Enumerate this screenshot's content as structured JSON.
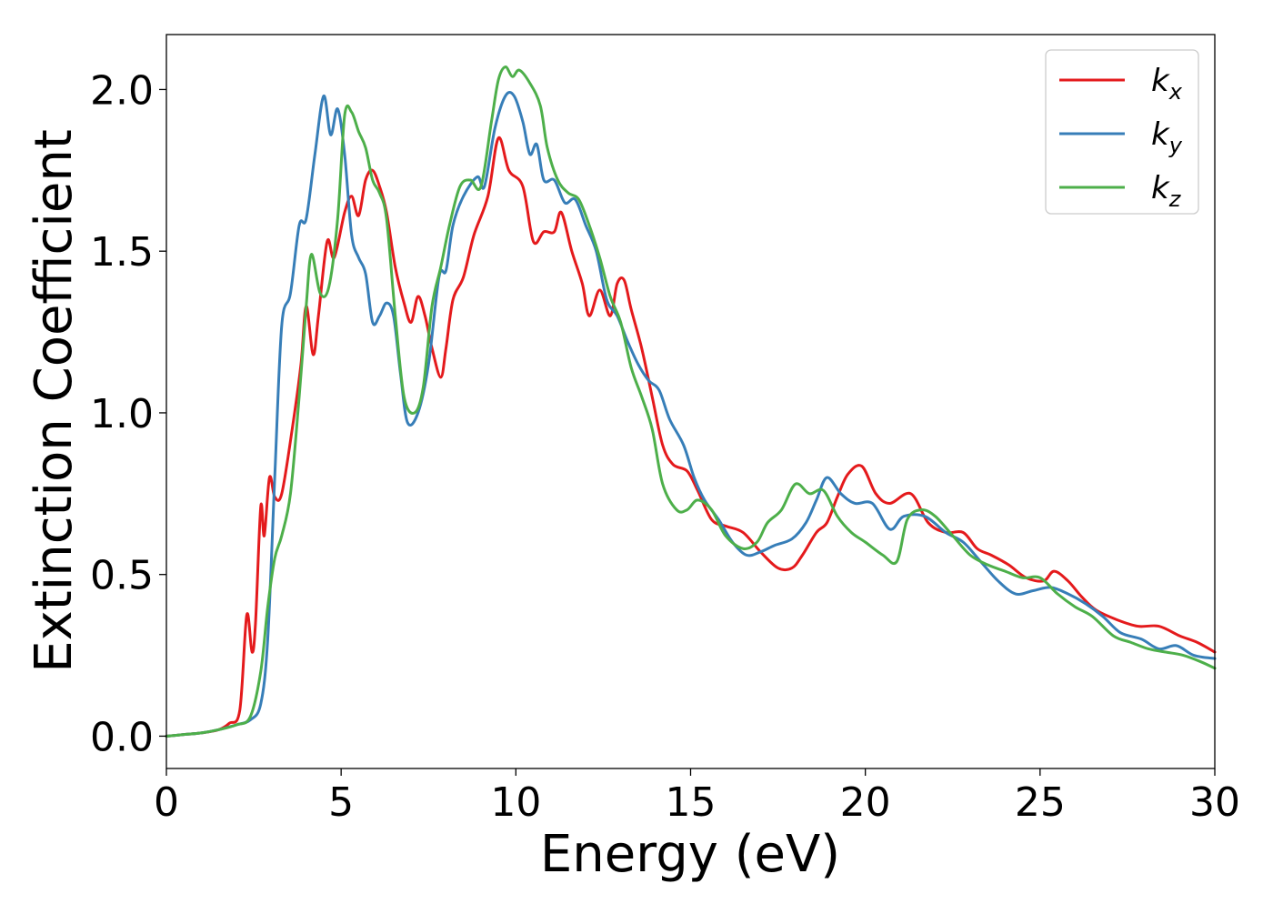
{
  "chart_data": {
    "type": "line",
    "title": "",
    "xlabel": "Energy (eV)",
    "ylabel": "Extinction Coefficient",
    "xlim": [
      0,
      30
    ],
    "ylim": [
      -0.1,
      2.17
    ],
    "xticks": [
      0,
      5,
      10,
      15,
      20,
      25,
      30
    ],
    "xtick_labels": [
      "0",
      "5",
      "10",
      "15",
      "20",
      "25",
      "30"
    ],
    "yticks": [
      0.0,
      0.5,
      1.0,
      1.5,
      2.0
    ],
    "ytick_labels": [
      "0.0",
      "0.5",
      "1.0",
      "1.5",
      "2.0"
    ],
    "grid": false,
    "legend_position": "top-right",
    "series": [
      {
        "name": "k",
        "subscript": "x",
        "color": "#e41a1c",
        "points": [
          [
            0,
            0
          ],
          [
            0.5,
            0.005
          ],
          [
            1,
            0.01
          ],
          [
            1.5,
            0.02
          ],
          [
            1.8,
            0.04
          ],
          [
            2.1,
            0.08
          ],
          [
            2.3,
            0.375
          ],
          [
            2.45,
            0.26
          ],
          [
            2.55,
            0.35
          ],
          [
            2.7,
            0.71
          ],
          [
            2.8,
            0.62
          ],
          [
            2.95,
            0.8
          ],
          [
            3.1,
            0.74
          ],
          [
            3.3,
            0.75
          ],
          [
            3.6,
            0.95
          ],
          [
            3.85,
            1.15
          ],
          [
            4.0,
            1.33
          ],
          [
            4.2,
            1.18
          ],
          [
            4.35,
            1.3
          ],
          [
            4.6,
            1.53
          ],
          [
            4.8,
            1.48
          ],
          [
            5.1,
            1.62
          ],
          [
            5.3,
            1.67
          ],
          [
            5.5,
            1.61
          ],
          [
            5.7,
            1.72
          ],
          [
            5.9,
            1.75
          ],
          [
            6.1,
            1.7
          ],
          [
            6.3,
            1.62
          ],
          [
            6.55,
            1.45
          ],
          [
            6.8,
            1.34
          ],
          [
            7.0,
            1.28
          ],
          [
            7.2,
            1.36
          ],
          [
            7.4,
            1.3
          ],
          [
            7.6,
            1.2
          ],
          [
            7.85,
            1.11
          ],
          [
            8.0,
            1.2
          ],
          [
            8.2,
            1.35
          ],
          [
            8.5,
            1.42
          ],
          [
            8.8,
            1.55
          ],
          [
            9.2,
            1.67
          ],
          [
            9.5,
            1.85
          ],
          [
            9.8,
            1.75
          ],
          [
            10.2,
            1.7
          ],
          [
            10.5,
            1.53
          ],
          [
            10.8,
            1.56
          ],
          [
            11.1,
            1.56
          ],
          [
            11.3,
            1.62
          ],
          [
            11.6,
            1.5
          ],
          [
            11.9,
            1.4
          ],
          [
            12.1,
            1.3
          ],
          [
            12.4,
            1.38
          ],
          [
            12.7,
            1.3
          ],
          [
            12.9,
            1.4
          ],
          [
            13.1,
            1.41
          ],
          [
            13.3,
            1.32
          ],
          [
            13.6,
            1.2
          ],
          [
            13.9,
            1.05
          ],
          [
            14.2,
            0.9
          ],
          [
            14.5,
            0.84
          ],
          [
            14.9,
            0.82
          ],
          [
            15.2,
            0.76
          ],
          [
            15.6,
            0.67
          ],
          [
            16.0,
            0.65
          ],
          [
            16.5,
            0.63
          ],
          [
            17.0,
            0.57
          ],
          [
            17.5,
            0.52
          ],
          [
            17.9,
            0.52
          ],
          [
            18.2,
            0.56
          ],
          [
            18.6,
            0.63
          ],
          [
            18.9,
            0.66
          ],
          [
            19.2,
            0.74
          ],
          [
            19.5,
            0.81
          ],
          [
            19.9,
            0.835
          ],
          [
            20.3,
            0.75
          ],
          [
            20.7,
            0.72
          ],
          [
            21.3,
            0.75
          ],
          [
            21.8,
            0.66
          ],
          [
            22.3,
            0.63
          ],
          [
            22.8,
            0.63
          ],
          [
            23.2,
            0.58
          ],
          [
            23.6,
            0.56
          ],
          [
            24.1,
            0.53
          ],
          [
            24.6,
            0.49
          ],
          [
            25.1,
            0.48
          ],
          [
            25.4,
            0.51
          ],
          [
            25.8,
            0.48
          ],
          [
            26.2,
            0.43
          ],
          [
            26.6,
            0.39
          ],
          [
            27.2,
            0.36
          ],
          [
            27.8,
            0.34
          ],
          [
            28.4,
            0.34
          ],
          [
            29.0,
            0.31
          ],
          [
            29.5,
            0.29
          ],
          [
            30,
            0.26
          ]
        ]
      },
      {
        "name": "k",
        "subscript": "y",
        "color": "#377eb8",
        "points": [
          [
            0,
            0
          ],
          [
            0.5,
            0.005
          ],
          [
            1,
            0.01
          ],
          [
            1.5,
            0.02
          ],
          [
            2.0,
            0.035
          ],
          [
            2.4,
            0.05
          ],
          [
            2.7,
            0.1
          ],
          [
            2.9,
            0.3
          ],
          [
            3.1,
            0.8
          ],
          [
            3.3,
            1.27
          ],
          [
            3.55,
            1.37
          ],
          [
            3.8,
            1.58
          ],
          [
            4.0,
            1.6
          ],
          [
            4.25,
            1.8
          ],
          [
            4.5,
            1.98
          ],
          [
            4.7,
            1.86
          ],
          [
            4.9,
            1.94
          ],
          [
            5.1,
            1.8
          ],
          [
            5.3,
            1.55
          ],
          [
            5.5,
            1.48
          ],
          [
            5.7,
            1.43
          ],
          [
            5.9,
            1.28
          ],
          [
            6.1,
            1.3
          ],
          [
            6.3,
            1.34
          ],
          [
            6.5,
            1.3
          ],
          [
            6.7,
            1.12
          ],
          [
            6.9,
            0.97
          ],
          [
            7.2,
            1.0
          ],
          [
            7.5,
            1.15
          ],
          [
            7.8,
            1.42
          ],
          [
            8.0,
            1.44
          ],
          [
            8.2,
            1.58
          ],
          [
            8.5,
            1.67
          ],
          [
            8.9,
            1.73
          ],
          [
            9.1,
            1.7
          ],
          [
            9.4,
            1.88
          ],
          [
            9.7,
            1.98
          ],
          [
            9.95,
            1.98
          ],
          [
            10.2,
            1.9
          ],
          [
            10.4,
            1.8
          ],
          [
            10.6,
            1.83
          ],
          [
            10.8,
            1.72
          ],
          [
            11.1,
            1.72
          ],
          [
            11.4,
            1.65
          ],
          [
            11.7,
            1.66
          ],
          [
            12.0,
            1.58
          ],
          [
            12.3,
            1.5
          ],
          [
            12.6,
            1.35
          ],
          [
            12.9,
            1.3
          ],
          [
            13.2,
            1.22
          ],
          [
            13.5,
            1.15
          ],
          [
            13.8,
            1.1
          ],
          [
            14.1,
            1.07
          ],
          [
            14.4,
            0.98
          ],
          [
            14.8,
            0.9
          ],
          [
            15.1,
            0.8
          ],
          [
            15.4,
            0.73
          ],
          [
            15.8,
            0.67
          ],
          [
            16.2,
            0.6
          ],
          [
            16.6,
            0.56
          ],
          [
            17.0,
            0.57
          ],
          [
            17.4,
            0.59
          ],
          [
            17.9,
            0.61
          ],
          [
            18.3,
            0.66
          ],
          [
            18.6,
            0.73
          ],
          [
            18.9,
            0.8
          ],
          [
            19.3,
            0.75
          ],
          [
            19.7,
            0.72
          ],
          [
            20.2,
            0.72
          ],
          [
            20.7,
            0.64
          ],
          [
            21.1,
            0.68
          ],
          [
            21.7,
            0.68
          ],
          [
            22.3,
            0.63
          ],
          [
            22.8,
            0.6
          ],
          [
            23.3,
            0.54
          ],
          [
            23.8,
            0.48
          ],
          [
            24.3,
            0.44
          ],
          [
            24.8,
            0.45
          ],
          [
            25.3,
            0.46
          ],
          [
            25.8,
            0.44
          ],
          [
            26.3,
            0.41
          ],
          [
            26.8,
            0.37
          ],
          [
            27.3,
            0.32
          ],
          [
            27.9,
            0.3
          ],
          [
            28.4,
            0.27
          ],
          [
            28.9,
            0.28
          ],
          [
            29.4,
            0.25
          ],
          [
            30,
            0.24
          ]
        ]
      },
      {
        "name": "k",
        "subscript": "z",
        "color": "#4daf4a",
        "points": [
          [
            0,
            0
          ],
          [
            0.5,
            0.005
          ],
          [
            1,
            0.01
          ],
          [
            1.5,
            0.02
          ],
          [
            2.0,
            0.035
          ],
          [
            2.4,
            0.06
          ],
          [
            2.7,
            0.2
          ],
          [
            2.9,
            0.4
          ],
          [
            3.1,
            0.55
          ],
          [
            3.3,
            0.62
          ],
          [
            3.55,
            0.75
          ],
          [
            3.8,
            1.05
          ],
          [
            4.0,
            1.33
          ],
          [
            4.15,
            1.49
          ],
          [
            4.4,
            1.37
          ],
          [
            4.65,
            1.39
          ],
          [
            4.9,
            1.6
          ],
          [
            5.1,
            1.92
          ],
          [
            5.3,
            1.93
          ],
          [
            5.5,
            1.87
          ],
          [
            5.7,
            1.82
          ],
          [
            5.9,
            1.72
          ],
          [
            6.1,
            1.68
          ],
          [
            6.3,
            1.6
          ],
          [
            6.55,
            1.3
          ],
          [
            6.8,
            1.05
          ],
          [
            7.1,
            1.0
          ],
          [
            7.35,
            1.08
          ],
          [
            7.6,
            1.33
          ],
          [
            7.85,
            1.45
          ],
          [
            8.1,
            1.58
          ],
          [
            8.4,
            1.7
          ],
          [
            8.7,
            1.72
          ],
          [
            9.0,
            1.7
          ],
          [
            9.3,
            1.9
          ],
          [
            9.5,
            2.03
          ],
          [
            9.7,
            2.07
          ],
          [
            9.9,
            2.04
          ],
          [
            10.1,
            2.06
          ],
          [
            10.4,
            2.02
          ],
          [
            10.7,
            1.95
          ],
          [
            10.9,
            1.82
          ],
          [
            11.2,
            1.72
          ],
          [
            11.5,
            1.68
          ],
          [
            11.8,
            1.66
          ],
          [
            12.1,
            1.58
          ],
          [
            12.4,
            1.48
          ],
          [
            12.7,
            1.36
          ],
          [
            13.0,
            1.28
          ],
          [
            13.3,
            1.14
          ],
          [
            13.6,
            1.05
          ],
          [
            13.9,
            0.95
          ],
          [
            14.2,
            0.78
          ],
          [
            14.6,
            0.7
          ],
          [
            14.9,
            0.7
          ],
          [
            15.2,
            0.73
          ],
          [
            15.6,
            0.7
          ],
          [
            16.0,
            0.62
          ],
          [
            16.5,
            0.58
          ],
          [
            16.9,
            0.6
          ],
          [
            17.2,
            0.66
          ],
          [
            17.6,
            0.7
          ],
          [
            18.0,
            0.78
          ],
          [
            18.4,
            0.75
          ],
          [
            18.8,
            0.76
          ],
          [
            19.2,
            0.68
          ],
          [
            19.6,
            0.63
          ],
          [
            20.0,
            0.6
          ],
          [
            20.5,
            0.56
          ],
          [
            20.9,
            0.54
          ],
          [
            21.2,
            0.67
          ],
          [
            21.6,
            0.7
          ],
          [
            22.0,
            0.68
          ],
          [
            22.5,
            0.62
          ],
          [
            23.0,
            0.56
          ],
          [
            23.5,
            0.53
          ],
          [
            24.0,
            0.51
          ],
          [
            24.5,
            0.49
          ],
          [
            25.0,
            0.49
          ],
          [
            25.5,
            0.44
          ],
          [
            26.0,
            0.4
          ],
          [
            26.5,
            0.37
          ],
          [
            27.1,
            0.31
          ],
          [
            27.6,
            0.29
          ],
          [
            28.1,
            0.27
          ],
          [
            28.6,
            0.26
          ],
          [
            29.1,
            0.25
          ],
          [
            29.6,
            0.23
          ],
          [
            30,
            0.21
          ]
        ]
      }
    ]
  }
}
